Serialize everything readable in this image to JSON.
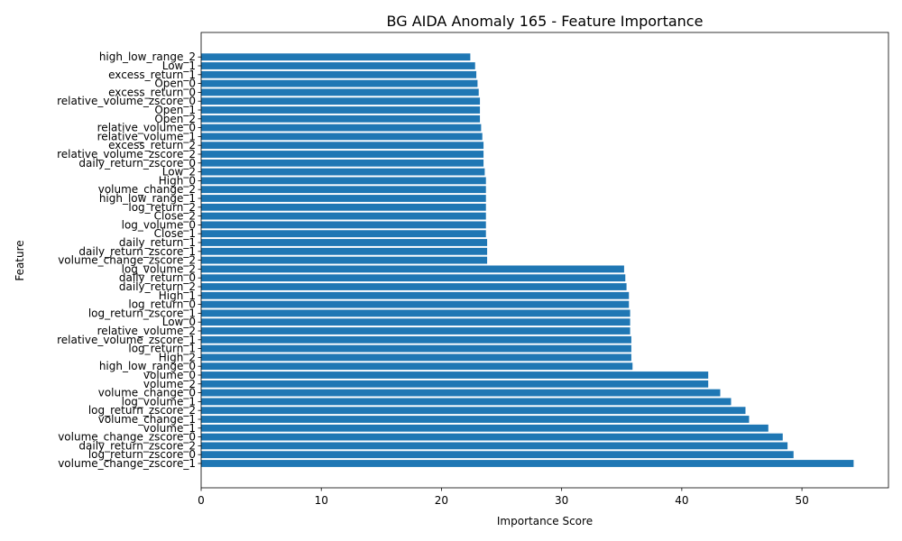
{
  "chart_data": {
    "type": "bar",
    "orientation": "horizontal",
    "title": "BG AIDA Anomaly 165 - Feature Importance",
    "xlabel": "Importance Score",
    "ylabel": "Feature",
    "xlim": [
      0,
      57.2
    ],
    "xticks": [
      0,
      10,
      20,
      30,
      40,
      50
    ],
    "grid": false,
    "bar_color": "#1f77b4",
    "categories": [
      "volume_change_zscore_1",
      "log_return_zscore_0",
      "daily_return_zscore_2",
      "volume_change_zscore_0",
      "volume_1",
      "volume_change_1",
      "log_return_zscore_2",
      "log_volume_1",
      "volume_change_0",
      "volume_2",
      "volume_0",
      "high_low_range_0",
      "High_2",
      "log_return_1",
      "relative_volume_zscore_1",
      "relative_volume_2",
      "Low_0",
      "log_return_zscore_1",
      "log_return_0",
      "High_1",
      "daily_return_2",
      "daily_return_0",
      "log_volume_2",
      "volume_change_zscore_2",
      "daily_return_zscore_1",
      "daily_return_1",
      "Close_1",
      "log_volume_0",
      "Close_2",
      "log_return_2",
      "high_low_range_1",
      "volume_change_2",
      "High_0",
      "Low_2",
      "daily_return_zscore_0",
      "relative_volume_zscore_2",
      "excess_return_2",
      "relative_volume_1",
      "relative_volume_0",
      "Open_2",
      "Open_1",
      "relative_volume_zscore_0",
      "excess_return_0",
      "Open_0",
      "excess_return_1",
      "Low_1",
      "high_low_range_2"
    ],
    "values": [
      54.3,
      49.3,
      48.8,
      48.4,
      47.2,
      45.6,
      45.3,
      44.1,
      43.2,
      42.2,
      42.2,
      35.9,
      35.8,
      35.8,
      35.8,
      35.7,
      35.7,
      35.7,
      35.6,
      35.6,
      35.4,
      35.3,
      35.2,
      23.8,
      23.8,
      23.8,
      23.7,
      23.7,
      23.7,
      23.7,
      23.7,
      23.7,
      23.7,
      23.6,
      23.5,
      23.5,
      23.5,
      23.4,
      23.3,
      23.2,
      23.2,
      23.2,
      23.1,
      23.0,
      22.9,
      22.8,
      22.4
    ]
  }
}
